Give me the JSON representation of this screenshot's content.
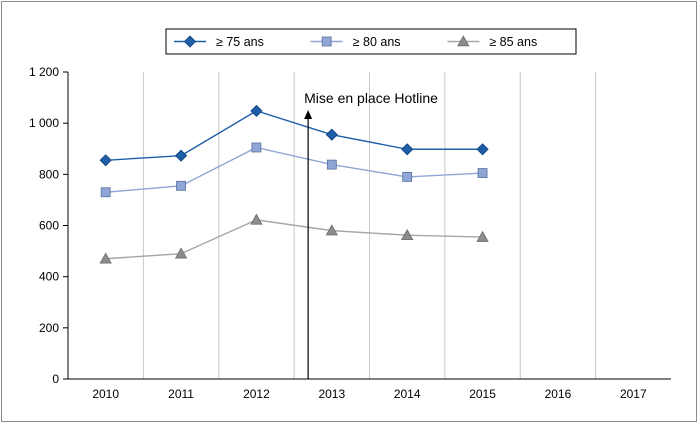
{
  "chart_data": {
    "type": "line",
    "title": "",
    "xlabel": "",
    "ylabel": "",
    "categories": [
      "2010",
      "2011",
      "2012",
      "2013",
      "2014",
      "2015",
      "2016",
      "2017"
    ],
    "ylim": [
      0,
      1200
    ],
    "yticks": [
      0,
      200,
      400,
      600,
      800,
      1000,
      1200
    ],
    "ytick_labels": [
      "0",
      "200",
      "400",
      "600",
      "800",
      "1 000",
      "1 200"
    ],
    "grid": "vertical",
    "legend_position": "top",
    "series": [
      {
        "name": "≥ 75 ans",
        "marker": "diamond",
        "color": "#1f5fa8",
        "marker_color": "#1f5fa8",
        "values": [
          855,
          873,
          1048,
          955,
          898,
          898,
          null,
          null
        ]
      },
      {
        "name": "≥ 80 ans",
        "marker": "square",
        "color": "#8fa6d6",
        "marker_color": "#8fa6d6",
        "values": [
          730,
          755,
          905,
          838,
          790,
          805,
          null,
          null
        ]
      },
      {
        "name": "≥ 85 ans",
        "marker": "triangle",
        "color": "#a6a6a6",
        "marker_color": "#8c8c8c",
        "values": [
          470,
          490,
          622,
          580,
          562,
          555,
          null,
          null
        ]
      }
    ],
    "annotations": [
      {
        "text": "Mise en place Hotline",
        "at_category_between": [
          "2012",
          "2013"
        ],
        "arrow": "up"
      }
    ]
  }
}
